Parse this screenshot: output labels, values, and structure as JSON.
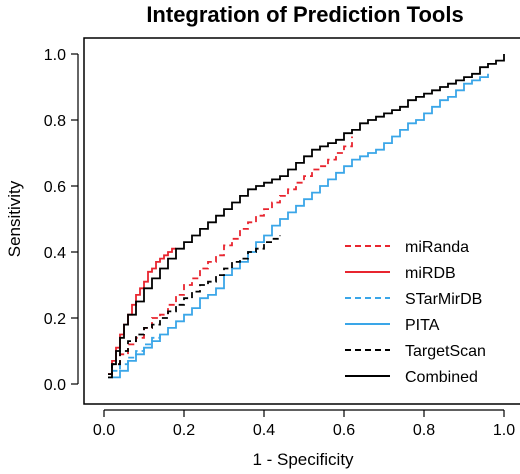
{
  "chart_data": {
    "type": "line",
    "title": "Integration of Prediction Tools",
    "xlabel": "1 - Specificity",
    "ylabel": "Sensitivity",
    "xlim": [
      0.0,
      1.0
    ],
    "ylim": [
      0.0,
      1.0
    ],
    "xticks": [
      "0.0",
      "0.2",
      "0.4",
      "0.6",
      "0.8",
      "1.0"
    ],
    "yticks": [
      "0.0",
      "0.2",
      "0.4",
      "0.6",
      "0.8",
      "1.0"
    ],
    "grid": false,
    "legend_position": "bottom-right",
    "series": [
      {
        "name": "miRanda",
        "color": "#e8252f",
        "dash": "dashed",
        "points": [
          [
            0.01,
            0.03
          ],
          [
            0.02,
            0.06
          ],
          [
            0.04,
            0.09
          ],
          [
            0.06,
            0.12
          ],
          [
            0.08,
            0.14
          ],
          [
            0.1,
            0.17
          ],
          [
            0.12,
            0.2
          ],
          [
            0.14,
            0.21
          ],
          [
            0.16,
            0.24
          ],
          [
            0.18,
            0.27
          ],
          [
            0.2,
            0.3
          ],
          [
            0.22,
            0.32
          ],
          [
            0.24,
            0.35
          ],
          [
            0.26,
            0.37
          ],
          [
            0.28,
            0.39
          ],
          [
            0.3,
            0.42
          ],
          [
            0.32,
            0.44
          ],
          [
            0.34,
            0.47
          ],
          [
            0.36,
            0.49
          ],
          [
            0.38,
            0.51
          ],
          [
            0.4,
            0.53
          ],
          [
            0.42,
            0.55
          ],
          [
            0.44,
            0.57
          ],
          [
            0.46,
            0.59
          ],
          [
            0.48,
            0.61
          ],
          [
            0.5,
            0.63
          ],
          [
            0.52,
            0.65
          ],
          [
            0.54,
            0.66
          ],
          [
            0.56,
            0.68
          ],
          [
            0.58,
            0.7
          ],
          [
            0.6,
            0.72
          ],
          [
            0.62,
            0.75
          ]
        ]
      },
      {
        "name": "miRDB",
        "color": "#e8252f",
        "dash": "solid",
        "points": [
          [
            0.01,
            0.03
          ],
          [
            0.02,
            0.07
          ],
          [
            0.03,
            0.11
          ],
          [
            0.04,
            0.15
          ],
          [
            0.05,
            0.18
          ],
          [
            0.06,
            0.21
          ],
          [
            0.07,
            0.24
          ],
          [
            0.08,
            0.27
          ],
          [
            0.09,
            0.29
          ],
          [
            0.1,
            0.31
          ],
          [
            0.11,
            0.34
          ],
          [
            0.12,
            0.35
          ],
          [
            0.13,
            0.37
          ],
          [
            0.14,
            0.38
          ],
          [
            0.15,
            0.39
          ],
          [
            0.16,
            0.4
          ],
          [
            0.17,
            0.41
          ],
          [
            0.18,
            0.41
          ]
        ]
      },
      {
        "name": "STarMirDB",
        "color": "#3aa6e8",
        "dash": "dashed",
        "points": [
          [
            0.01,
            0.02
          ],
          [
            0.02,
            0.04
          ],
          [
            0.04,
            0.06
          ],
          [
            0.06,
            0.08
          ],
          [
            0.08,
            0.1
          ],
          [
            0.1,
            0.12
          ],
          [
            0.12,
            0.14
          ],
          [
            0.14,
            0.15
          ]
        ]
      },
      {
        "name": "PITA",
        "color": "#3aa6e8",
        "dash": "solid",
        "points": [
          [
            0.02,
            0.02
          ],
          [
            0.04,
            0.04
          ],
          [
            0.06,
            0.07
          ],
          [
            0.08,
            0.09
          ],
          [
            0.1,
            0.11
          ],
          [
            0.12,
            0.13
          ],
          [
            0.14,
            0.15
          ],
          [
            0.16,
            0.17
          ],
          [
            0.18,
            0.19
          ],
          [
            0.2,
            0.21
          ],
          [
            0.22,
            0.23
          ],
          [
            0.24,
            0.26
          ],
          [
            0.26,
            0.27
          ],
          [
            0.28,
            0.29
          ],
          [
            0.3,
            0.33
          ],
          [
            0.32,
            0.35
          ],
          [
            0.34,
            0.37
          ],
          [
            0.36,
            0.4
          ],
          [
            0.38,
            0.43
          ],
          [
            0.4,
            0.45
          ],
          [
            0.42,
            0.48
          ],
          [
            0.44,
            0.5
          ],
          [
            0.46,
            0.52
          ],
          [
            0.48,
            0.54
          ],
          [
            0.5,
            0.56
          ],
          [
            0.52,
            0.58
          ],
          [
            0.54,
            0.6
          ],
          [
            0.56,
            0.62
          ],
          [
            0.58,
            0.64
          ],
          [
            0.6,
            0.66
          ],
          [
            0.62,
            0.68
          ],
          [
            0.64,
            0.69
          ],
          [
            0.66,
            0.7
          ],
          [
            0.68,
            0.71
          ],
          [
            0.7,
            0.73
          ],
          [
            0.72,
            0.75
          ],
          [
            0.74,
            0.77
          ],
          [
            0.76,
            0.79
          ],
          [
            0.78,
            0.8
          ],
          [
            0.8,
            0.82
          ],
          [
            0.82,
            0.84
          ],
          [
            0.84,
            0.86
          ],
          [
            0.86,
            0.87
          ],
          [
            0.88,
            0.89
          ],
          [
            0.9,
            0.91
          ],
          [
            0.92,
            0.92
          ],
          [
            0.94,
            0.93
          ],
          [
            0.96,
            0.94
          ]
        ]
      },
      {
        "name": "TargetScan",
        "color": "#000000",
        "dash": "dashed",
        "points": [
          [
            0.01,
            0.03
          ],
          [
            0.02,
            0.06
          ],
          [
            0.04,
            0.1
          ],
          [
            0.06,
            0.13
          ],
          [
            0.08,
            0.15
          ],
          [
            0.1,
            0.17
          ],
          [
            0.12,
            0.18
          ],
          [
            0.14,
            0.2
          ],
          [
            0.16,
            0.22
          ],
          [
            0.18,
            0.24
          ],
          [
            0.2,
            0.26
          ],
          [
            0.22,
            0.28
          ],
          [
            0.24,
            0.3
          ],
          [
            0.26,
            0.31
          ],
          [
            0.28,
            0.33
          ],
          [
            0.3,
            0.35
          ],
          [
            0.32,
            0.37
          ],
          [
            0.34,
            0.38
          ],
          [
            0.36,
            0.4
          ],
          [
            0.38,
            0.41
          ],
          [
            0.4,
            0.43
          ],
          [
            0.42,
            0.44
          ],
          [
            0.44,
            0.45
          ]
        ]
      },
      {
        "name": "Combined",
        "color": "#000000",
        "dash": "solid",
        "points": [
          [
            0.01,
            0.02
          ],
          [
            0.02,
            0.06
          ],
          [
            0.03,
            0.1
          ],
          [
            0.04,
            0.14
          ],
          [
            0.05,
            0.18
          ],
          [
            0.06,
            0.21
          ],
          [
            0.08,
            0.25
          ],
          [
            0.1,
            0.29
          ],
          [
            0.12,
            0.32
          ],
          [
            0.14,
            0.35
          ],
          [
            0.16,
            0.38
          ],
          [
            0.18,
            0.41
          ],
          [
            0.2,
            0.43
          ],
          [
            0.22,
            0.45
          ],
          [
            0.24,
            0.47
          ],
          [
            0.26,
            0.49
          ],
          [
            0.28,
            0.51
          ],
          [
            0.3,
            0.53
          ],
          [
            0.32,
            0.55
          ],
          [
            0.34,
            0.57
          ],
          [
            0.36,
            0.59
          ],
          [
            0.38,
            0.6
          ],
          [
            0.4,
            0.61
          ],
          [
            0.42,
            0.62
          ],
          [
            0.44,
            0.63
          ],
          [
            0.46,
            0.65
          ],
          [
            0.48,
            0.67
          ],
          [
            0.5,
            0.69
          ],
          [
            0.52,
            0.71
          ],
          [
            0.54,
            0.72
          ],
          [
            0.56,
            0.73
          ],
          [
            0.58,
            0.74
          ],
          [
            0.6,
            0.76
          ],
          [
            0.62,
            0.77
          ],
          [
            0.64,
            0.79
          ],
          [
            0.66,
            0.8
          ],
          [
            0.68,
            0.81
          ],
          [
            0.7,
            0.82
          ],
          [
            0.72,
            0.83
          ],
          [
            0.74,
            0.84
          ],
          [
            0.76,
            0.86
          ],
          [
            0.78,
            0.87
          ],
          [
            0.8,
            0.88
          ],
          [
            0.82,
            0.89
          ],
          [
            0.84,
            0.9
          ],
          [
            0.86,
            0.91
          ],
          [
            0.88,
            0.92
          ],
          [
            0.9,
            0.93
          ],
          [
            0.92,
            0.94
          ],
          [
            0.94,
            0.96
          ],
          [
            0.96,
            0.97
          ],
          [
            0.98,
            0.98
          ],
          [
            1.0,
            1.0
          ]
        ]
      }
    ]
  }
}
